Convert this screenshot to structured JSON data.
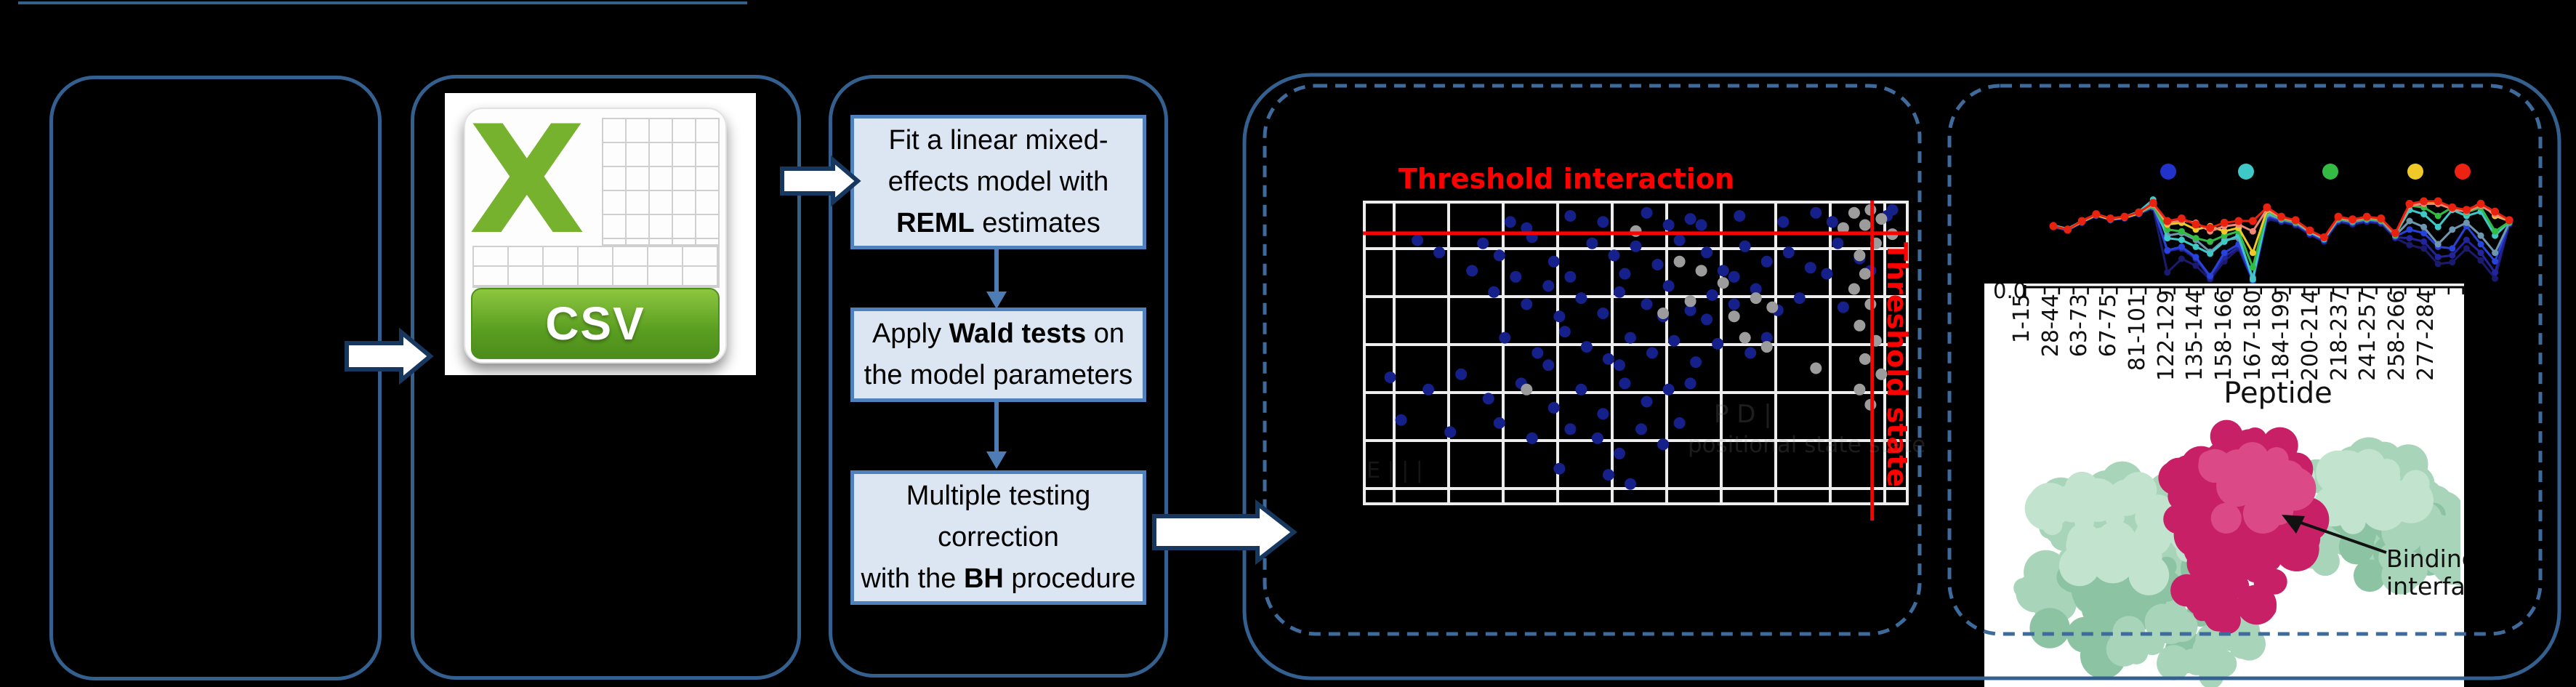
{
  "colors": {
    "background": "#000000",
    "box_border": "#33608F",
    "dashed_border": "#3E6B9C",
    "flow_box_fill": "#DCE6F2",
    "flow_box_border": "#4F81BD",
    "flow_arrow": "#4E7DB5",
    "block_arrow_fill": "#FFFFFF",
    "block_arrow_border": "#17375E",
    "threshold_red": "#FE0000",
    "scatter_blue": "#15208A",
    "scatter_gray": "#9C9C9C",
    "gridline_white": "#EDEDED"
  },
  "csv": {
    "label": "CSV"
  },
  "flowchart": {
    "steps": [
      {
        "id": "reml",
        "lines": [
          [
            {
              "t": "Fit a linear mixed-"
            }
          ],
          [
            {
              "t": "effects model with"
            }
          ],
          [
            {
              "t": "REML",
              "b": true
            },
            {
              "t": " estimates"
            }
          ]
        ]
      },
      {
        "id": "wald",
        "lines": [
          [
            {
              "t": "Apply "
            },
            {
              "t": "Wald tests",
              "b": true
            },
            {
              "t": " on"
            }
          ],
          [
            {
              "t": "the model parameters"
            }
          ]
        ]
      },
      {
        "id": "bh",
        "lines": [
          [
            {
              "t": "Multiple testing"
            }
          ],
          [
            {
              "t": "correction"
            }
          ],
          [
            {
              "t": "with the "
            },
            {
              "t": "BH",
              "b": true
            },
            {
              "t": " procedure"
            }
          ]
        ]
      }
    ]
  },
  "ghost_text": {
    "line1": "P      D      |",
    "line2": "positional state state",
    "line3": "E  |  |  |"
  },
  "panel5": {
    "ytick": "0.0",
    "xlabel": "Peptide",
    "annotation_line1": "Binding",
    "annotation_line2": "interface"
  },
  "chart_data": [
    {
      "type": "scatter",
      "title": "Threshold interaction",
      "grid": true,
      "background": "#000000",
      "gridline_color": "#EDEDED",
      "threshold_interaction_label": "Threshold interaction",
      "threshold_state_label": "Threshold state",
      "thresholds": {
        "horizontal_frac": 0.107,
        "vertical_frac": 0.933
      },
      "series": [
        {
          "name": "interaction-points",
          "color": "#15208A",
          "points": [
            [
              0.27,
              0.07
            ],
            [
              0.38,
              0.05
            ],
            [
              0.44,
              0.07
            ],
            [
              0.52,
              0.04
            ],
            [
              0.56,
              0.08
            ],
            [
              0.6,
              0.06
            ],
            [
              0.69,
              0.05
            ],
            [
              0.77,
              0.07
            ],
            [
              0.83,
              0.04
            ],
            [
              0.86,
              0.07
            ],
            [
              0.96,
              0.05
            ],
            [
              0.97,
              0.03
            ],
            [
              0.3,
              0.09
            ],
            [
              0.62,
              0.08
            ],
            [
              0.1,
              0.13
            ],
            [
              0.14,
              0.17
            ],
            [
              0.22,
              0.14
            ],
            [
              0.25,
              0.18
            ],
            [
              0.31,
              0.12
            ],
            [
              0.35,
              0.2
            ],
            [
              0.42,
              0.14
            ],
            [
              0.46,
              0.18
            ],
            [
              0.5,
              0.15
            ],
            [
              0.54,
              0.21
            ],
            [
              0.58,
              0.13
            ],
            [
              0.63,
              0.17
            ],
            [
              0.66,
              0.23
            ],
            [
              0.7,
              0.15
            ],
            [
              0.74,
              0.2
            ],
            [
              0.78,
              0.17
            ],
            [
              0.82,
              0.22
            ],
            [
              0.87,
              0.14
            ],
            [
              0.91,
              0.19
            ],
            [
              0.2,
              0.23
            ],
            [
              0.28,
              0.25
            ],
            [
              0.38,
              0.25
            ],
            [
              0.48,
              0.24
            ],
            [
              0.68,
              0.25
            ],
            [
              0.85,
              0.24
            ],
            [
              0.93,
              0.23
            ],
            [
              0.24,
              0.3
            ],
            [
              0.3,
              0.34
            ],
            [
              0.34,
              0.28
            ],
            [
              0.4,
              0.32
            ],
            [
              0.44,
              0.37
            ],
            [
              0.47,
              0.3
            ],
            [
              0.52,
              0.34
            ],
            [
              0.56,
              0.28
            ],
            [
              0.6,
              0.36
            ],
            [
              0.64,
              0.31
            ],
            [
              0.68,
              0.34
            ],
            [
              0.72,
              0.29
            ],
            [
              0.76,
              0.36
            ],
            [
              0.8,
              0.32
            ],
            [
              0.55,
              0.38
            ],
            [
              0.36,
              0.38
            ],
            [
              0.63,
              0.39
            ],
            [
              0.88,
              0.35
            ],
            [
              0.26,
              0.45
            ],
            [
              0.32,
              0.5
            ],
            [
              0.37,
              0.43
            ],
            [
              0.41,
              0.48
            ],
            [
              0.45,
              0.52
            ],
            [
              0.49,
              0.45
            ],
            [
              0.53,
              0.5
            ],
            [
              0.57,
              0.46
            ],
            [
              0.61,
              0.53
            ],
            [
              0.65,
              0.47
            ],
            [
              0.47,
              0.54
            ],
            [
              0.71,
              0.5
            ],
            [
              0.34,
              0.54
            ],
            [
              0.74,
              0.45
            ],
            [
              0.05,
              0.58
            ],
            [
              0.12,
              0.62
            ],
            [
              0.18,
              0.57
            ],
            [
              0.23,
              0.65
            ],
            [
              0.29,
              0.6
            ],
            [
              0.35,
              0.68
            ],
            [
              0.4,
              0.62
            ],
            [
              0.44,
              0.7
            ],
            [
              0.48,
              0.6
            ],
            [
              0.52,
              0.66
            ],
            [
              0.38,
              0.75
            ],
            [
              0.43,
              0.78
            ],
            [
              0.47,
              0.83
            ],
            [
              0.51,
              0.75
            ],
            [
              0.56,
              0.62
            ],
            [
              0.6,
              0.6
            ],
            [
              0.31,
              0.78
            ],
            [
              0.55,
              0.8
            ],
            [
              0.25,
              0.73
            ],
            [
              0.58,
              0.73
            ],
            [
              0.45,
              0.9
            ],
            [
              0.49,
              0.93
            ],
            [
              0.36,
              0.88
            ],
            [
              0.07,
              0.72
            ],
            [
              0.16,
              0.76
            ]
          ]
        },
        {
          "name": "state-points",
          "color": "#9C9C9C",
          "points": [
            [
              0.9,
              0.04
            ],
            [
              0.93,
              0.03
            ],
            [
              0.92,
              0.08
            ],
            [
              0.95,
              0.06
            ],
            [
              0.97,
              0.11
            ],
            [
              0.88,
              0.09
            ],
            [
              0.94,
              0.14
            ],
            [
              0.91,
              0.18
            ],
            [
              0.92,
              0.24
            ],
            [
              0.9,
              0.29
            ],
            [
              0.93,
              0.34
            ],
            [
              0.91,
              0.41
            ],
            [
              0.94,
              0.46
            ],
            [
              0.92,
              0.52
            ],
            [
              0.95,
              0.57
            ],
            [
              0.91,
              0.62
            ],
            [
              0.93,
              0.67
            ],
            [
              0.58,
              0.2
            ],
            [
              0.62,
              0.23
            ],
            [
              0.66,
              0.27
            ],
            [
              0.72,
              0.32
            ],
            [
              0.75,
              0.35
            ],
            [
              0.68,
              0.38
            ],
            [
              0.6,
              0.33
            ],
            [
              0.55,
              0.37
            ],
            [
              0.7,
              0.45
            ],
            [
              0.74,
              0.48
            ],
            [
              0.3,
              0.62
            ],
            [
              0.83,
              0.55
            ],
            [
              0.5,
              0.1
            ]
          ]
        }
      ]
    },
    {
      "type": "line",
      "xlabel": "Peptide",
      "ytick_labels": [
        "0.0"
      ],
      "xtick_labels": [
        "1-15",
        "28-44",
        "63-73",
        "67-75",
        "81-101",
        "122-129",
        "135-144",
        "158-166",
        "167-180",
        "184-199",
        "200-214",
        "218-237",
        "241-257",
        "258-266",
        "277-284"
      ],
      "legend_dot_colors": [
        "#2233CC",
        "#3FC8C8",
        "#33BB44",
        "#F0C929",
        "#EE2211"
      ],
      "series": [
        {
          "name": "dark-navy",
          "color": "#1A1A6E",
          "values": [
            0.65,
            0.61,
            0.7,
            0.78,
            0.73,
            0.75,
            0.8,
            0.87,
            0.12,
            0.28,
            0.2,
            0.04,
            0.25,
            0.4,
            0.02,
            0.74,
            0.71,
            0.67,
            0.56,
            0.48,
            0.71,
            0.68,
            0.71,
            0.69,
            0.52,
            0.44,
            0.4,
            0.22,
            0.24,
            0.4,
            0.26,
            0.05,
            0.68
          ]
        },
        {
          "name": "navy",
          "color": "#23239B",
          "values": [
            0.65,
            0.61,
            0.7,
            0.78,
            0.73,
            0.75,
            0.8,
            0.88,
            0.37,
            0.4,
            0.28,
            0.06,
            0.3,
            0.42,
            0.02,
            0.76,
            0.72,
            0.68,
            0.57,
            0.49,
            0.72,
            0.69,
            0.72,
            0.7,
            0.53,
            0.52,
            0.48,
            0.3,
            0.32,
            0.5,
            0.35,
            0.12,
            0.69
          ]
        },
        {
          "name": "blue",
          "color": "#2743D9",
          "values": [
            0.66,
            0.62,
            0.71,
            0.79,
            0.74,
            0.76,
            0.81,
            0.89,
            0.38,
            0.42,
            0.3,
            0.08,
            0.35,
            0.45,
            0.03,
            0.78,
            0.73,
            0.69,
            0.58,
            0.5,
            0.73,
            0.7,
            0.73,
            0.71,
            0.54,
            0.62,
            0.58,
            0.42,
            0.4,
            0.66,
            0.45,
            0.25,
            0.7
          ]
        },
        {
          "name": "steel",
          "color": "#6E96AE",
          "values": [
            0.66,
            0.62,
            0.71,
            0.79,
            0.74,
            0.76,
            0.81,
            0.89,
            0.55,
            0.58,
            0.5,
            0.36,
            0.5,
            0.52,
            0.06,
            0.8,
            0.74,
            0.7,
            0.59,
            0.51,
            0.74,
            0.71,
            0.74,
            0.72,
            0.55,
            0.72,
            0.65,
            0.45,
            0.62,
            0.7,
            0.55,
            0.35,
            0.7
          ]
        },
        {
          "name": "cyan",
          "color": "#3FC8C8",
          "values": [
            0.67,
            0.63,
            0.72,
            0.8,
            0.75,
            0.77,
            0.83,
            0.97,
            0.52,
            0.5,
            0.42,
            0.34,
            0.48,
            0.55,
            0.04,
            0.82,
            0.75,
            0.71,
            0.59,
            0.51,
            0.75,
            0.72,
            0.75,
            0.73,
            0.56,
            0.85,
            0.8,
            0.65,
            0.85,
            0.78,
            0.83,
            0.55,
            0.71
          ]
        },
        {
          "name": "green",
          "color": "#33BB44",
          "values": [
            0.66,
            0.62,
            0.71,
            0.79,
            0.74,
            0.76,
            0.81,
            0.9,
            0.62,
            0.6,
            0.52,
            0.48,
            0.55,
            0.6,
            0.18,
            0.84,
            0.75,
            0.71,
            0.6,
            0.52,
            0.75,
            0.72,
            0.75,
            0.73,
            0.56,
            0.9,
            0.88,
            0.78,
            0.88,
            0.82,
            0.88,
            0.6,
            0.71
          ]
        },
        {
          "name": "yellow",
          "color": "#F0C929",
          "values": [
            0.66,
            0.62,
            0.71,
            0.79,
            0.74,
            0.76,
            0.81,
            0.92,
            0.68,
            0.7,
            0.62,
            0.66,
            0.6,
            0.64,
            0.35,
            0.85,
            0.76,
            0.72,
            0.6,
            0.52,
            0.76,
            0.73,
            0.76,
            0.74,
            0.57,
            0.91,
            0.94,
            0.93,
            0.87,
            0.84,
            0.93,
            0.78,
            0.72
          ]
        },
        {
          "name": "salmon",
          "color": "#F08878",
          "values": [
            0.66,
            0.62,
            0.72,
            0.8,
            0.75,
            0.77,
            0.82,
            0.91,
            0.7,
            0.73,
            0.7,
            0.6,
            0.66,
            0.68,
            0.6,
            0.86,
            0.76,
            0.72,
            0.6,
            0.52,
            0.76,
            0.73,
            0.76,
            0.74,
            0.57,
            0.9,
            0.92,
            0.92,
            0.86,
            0.83,
            0.9,
            0.8,
            0.72
          ]
        },
        {
          "name": "red",
          "color": "#E8220F",
          "values": [
            0.66,
            0.62,
            0.72,
            0.8,
            0.75,
            0.77,
            0.82,
            0.93,
            0.72,
            0.75,
            0.68,
            0.64,
            0.7,
            0.72,
            0.72,
            0.88,
            0.77,
            0.73,
            0.61,
            0.53,
            0.77,
            0.74,
            0.77,
            0.75,
            0.58,
            0.92,
            0.95,
            0.95,
            0.88,
            0.85,
            0.92,
            0.83,
            0.73
          ]
        }
      ]
    }
  ]
}
